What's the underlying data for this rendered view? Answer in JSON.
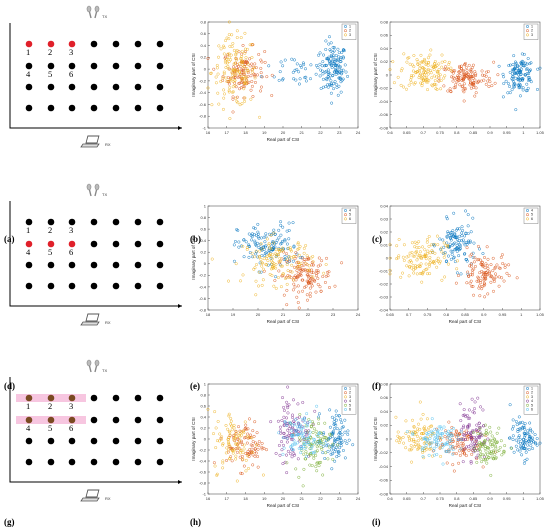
{
  "panel_labels": [
    "(a)",
    "(b)",
    "(c)",
    "(d)",
    "(e)",
    "(f)",
    "(g)",
    "(h)",
    "(i)"
  ],
  "device_labels": {
    "tx": "TX",
    "rx": "RX"
  },
  "layout_panels": [
    {
      "label": "(a)",
      "labeled_points": [
        "1",
        "2",
        "3",
        "4",
        "5",
        "6"
      ],
      "highlighted": [
        "1",
        "2",
        "3"
      ],
      "highlight_color": "#e0202a",
      "bands": []
    },
    {
      "label": "(d)",
      "labeled_points": [
        "1",
        "2",
        "3",
        "4",
        "5",
        "6"
      ],
      "highlighted": [
        "4",
        "5",
        "6"
      ],
      "highlight_color": "#e0202a",
      "bands": []
    },
    {
      "label": "(g)",
      "labeled_points": [
        "1",
        "2",
        "3",
        "4",
        "5",
        "6"
      ],
      "highlighted": [
        "1",
        "2",
        "3",
        "4",
        "5",
        "6"
      ],
      "highlight_color": "#7a4a22",
      "bands": [
        "row1",
        "row2"
      ]
    }
  ],
  "colors": {
    "s1": "#0072bd",
    "s2": "#d95319",
    "s3": "#edb120",
    "s4": "#7e2f8e",
    "s5": "#77ac30",
    "s6": "#4dbeee",
    "grid_dot": "#000000",
    "band": "#f7c6e0"
  },
  "chart_data": [
    {
      "panel": "(b)",
      "type": "scatter",
      "xlabel": "Real part of CSI",
      "ylabel": "Imaginary part of CSI",
      "xlim": [
        16,
        24
      ],
      "ylim": [
        -1,
        0.8
      ],
      "xticks": [
        "16",
        "17",
        "18",
        "19",
        "20",
        "21",
        "22",
        "23",
        "24"
      ],
      "yticks": [
        "0.8",
        "0.6",
        "0.4",
        "0.2",
        "0",
        "-0.2",
        "-0.4",
        "-0.6",
        "-0.8",
        "-1"
      ],
      "legend": [
        "1",
        "2",
        "3"
      ],
      "legend_position": "top-right",
      "series": [
        {
          "name": "1",
          "color": "#0072bd",
          "clusters": [
            {
              "cx": 22.7,
              "cy": 0.0,
              "sx": 0.35,
              "sy": 0.22,
              "n": 130
            },
            {
              "cx": 20.8,
              "cy": 0.0,
              "sx": 0.9,
              "sy": 0.15,
              "n": 35
            }
          ]
        },
        {
          "name": "2",
          "color": "#d95319",
          "clusters": [
            {
              "cx": 17.9,
              "cy": -0.05,
              "sx": 0.55,
              "sy": 0.2,
              "n": 120
            }
          ]
        },
        {
          "name": "3",
          "color": "#edb120",
          "clusters": [
            {
              "cx": 17.4,
              "cy": -0.05,
              "sx": 0.6,
              "sy": 0.3,
              "n": 140
            }
          ]
        }
      ]
    },
    {
      "panel": "(c)",
      "type": "scatter",
      "xlabel": "",
      "ylabel": "Imaginary part of CSI",
      "xlim": [
        0.6,
        1.05
      ],
      "ylim": [
        -0.08,
        0.08
      ],
      "xticks": [
        "0.6",
        "0.65",
        "0.7",
        "0.75",
        "0.8",
        "0.85",
        "0.9",
        "0.95",
        "1",
        "1.05"
      ],
      "yticks": [
        "0.08",
        "0.06",
        "0.04",
        "0.02",
        "0",
        "-0.02",
        "-0.04",
        "-0.06",
        "-0.08"
      ],
      "legend": [
        "1",
        "2",
        "3"
      ],
      "legend_position": "top-right",
      "series": [
        {
          "name": "1",
          "color": "#0072bd",
          "clusters": [
            {
              "cx": 0.99,
              "cy": 0.0,
              "sx": 0.022,
              "sy": 0.013,
              "n": 120
            }
          ]
        },
        {
          "name": "2",
          "color": "#d95319",
          "clusters": [
            {
              "cx": 0.83,
              "cy": -0.005,
              "sx": 0.04,
              "sy": 0.012,
              "n": 130
            }
          ]
        },
        {
          "name": "3",
          "color": "#edb120",
          "clusters": [
            {
              "cx": 0.7,
              "cy": 0.005,
              "sx": 0.035,
              "sy": 0.014,
              "n": 130
            }
          ]
        }
      ]
    },
    {
      "panel": "(e)",
      "type": "scatter",
      "xlabel": "Real part of CSI",
      "ylabel": "Imaginary part of CSI",
      "xlim": [
        18,
        24
      ],
      "ylim": [
        -0.8,
        1
      ],
      "xticks": [
        "18",
        "19",
        "20",
        "21",
        "22",
        "23",
        "24"
      ],
      "yticks": [
        "1",
        "0.8",
        "0.6",
        "0.4",
        "0.2",
        "0",
        "-0.2",
        "-0.4",
        "-0.6",
        "-0.8"
      ],
      "legend": [
        "4",
        "5",
        "6"
      ],
      "legend_position": "top-right",
      "series": [
        {
          "name": "4",
          "color": "#0072bd",
          "clusters": [
            {
              "cx": 20.4,
              "cy": 0.3,
              "sx": 0.6,
              "sy": 0.2,
              "n": 130
            }
          ]
        },
        {
          "name": "5",
          "color": "#d95319",
          "clusters": [
            {
              "cx": 21.9,
              "cy": -0.2,
              "sx": 0.55,
              "sy": 0.18,
              "n": 130
            }
          ]
        },
        {
          "name": "6",
          "color": "#edb120",
          "clusters": [
            {
              "cx": 20.8,
              "cy": 0.05,
              "sx": 0.7,
              "sy": 0.2,
              "n": 130
            }
          ]
        }
      ]
    },
    {
      "panel": "(f)",
      "type": "scatter",
      "xlabel": "Real part of CSI",
      "ylabel": "",
      "xlim": [
        0.65,
        1.05
      ],
      "ylim": [
        -0.04,
        0.04
      ],
      "xticks": [
        "0.65",
        "0.7",
        "0.75",
        "0.8",
        "0.85",
        "0.9",
        "0.95",
        "1",
        "1.05"
      ],
      "yticks": [
        "0.04",
        "0.03",
        "0.02",
        "0.01",
        "0",
        "-0.01",
        "-0.02",
        "-0.03",
        "-0.04"
      ],
      "legend": [
        "4",
        "5",
        "6"
      ],
      "legend_position": "top-right",
      "series": [
        {
          "name": "4",
          "color": "#0072bd",
          "clusters": [
            {
              "cx": 0.83,
              "cy": 0.01,
              "sx": 0.025,
              "sy": 0.009,
              "n": 110
            }
          ]
        },
        {
          "name": "5",
          "color": "#d95319",
          "clusters": [
            {
              "cx": 0.9,
              "cy": -0.012,
              "sx": 0.03,
              "sy": 0.008,
              "n": 110
            }
          ]
        },
        {
          "name": "6",
          "color": "#edb120",
          "clusters": [
            {
              "cx": 0.73,
              "cy": 0.0,
              "sx": 0.035,
              "sy": 0.008,
              "n": 120
            }
          ]
        }
      ]
    },
    {
      "panel": "(h)",
      "type": "scatter",
      "xlabel": "Real part of CSI",
      "ylabel": "Imaginary part of CSI",
      "xlim": [
        16,
        24
      ],
      "ylim": [
        -1,
        1
      ],
      "xticks": [
        "16",
        "17",
        "18",
        "19",
        "20",
        "21",
        "22",
        "23",
        "24"
      ],
      "yticks": [
        "1",
        "0.8",
        "0.6",
        "0.4",
        "0.2",
        "0",
        "-0.2",
        "-0.4",
        "-0.6",
        "-0.8",
        "-1"
      ],
      "legend": [
        "1",
        "2",
        "3",
        "4",
        "5",
        "6"
      ],
      "legend_position": "top-right",
      "series": [
        {
          "name": "1",
          "color": "#0072bd",
          "clusters": [
            {
              "cx": 22.8,
              "cy": 0.0,
              "sx": 0.35,
              "sy": 0.25,
              "n": 90
            }
          ]
        },
        {
          "name": "2",
          "color": "#d95319",
          "clusters": [
            {
              "cx": 18.0,
              "cy": -0.1,
              "sx": 0.5,
              "sy": 0.22,
              "n": 90
            }
          ]
        },
        {
          "name": "3",
          "color": "#edb120",
          "clusters": [
            {
              "cx": 17.4,
              "cy": -0.05,
              "sx": 0.55,
              "sy": 0.28,
              "n": 90
            }
          ]
        },
        {
          "name": "4",
          "color": "#7e2f8e",
          "clusters": [
            {
              "cx": 20.5,
              "cy": 0.2,
              "sx": 0.5,
              "sy": 0.3,
              "n": 100
            }
          ]
        },
        {
          "name": "5",
          "color": "#77ac30",
          "clusters": [
            {
              "cx": 21.6,
              "cy": -0.1,
              "sx": 0.5,
              "sy": 0.25,
              "n": 90
            }
          ]
        },
        {
          "name": "6",
          "color": "#4dbeee",
          "clusters": [
            {
              "cx": 21.0,
              "cy": 0.05,
              "sx": 0.5,
              "sy": 0.2,
              "n": 90
            }
          ]
        }
      ]
    },
    {
      "panel": "(i)",
      "type": "scatter",
      "xlabel": "Real part of CSI",
      "ylabel": "Imaginary part of CSI",
      "xlim": [
        0.6,
        1.05
      ],
      "ylim": [
        -0.08,
        0.08
      ],
      "xticks": [
        "0.6",
        "0.65",
        "0.7",
        "0.75",
        "0.8",
        "0.85",
        "0.9",
        "0.95",
        "1",
        "1.05"
      ],
      "yticks": [
        "0.08",
        "0.06",
        "0.04",
        "0.02",
        "0",
        "-0.02",
        "-0.04",
        "-0.06",
        "-0.08"
      ],
      "legend": [
        "1",
        "2",
        "3",
        "4",
        "5",
        "6"
      ],
      "legend_position": "top-right",
      "series": [
        {
          "name": "1",
          "color": "#0072bd",
          "clusters": [
            {
              "cx": 1.0,
              "cy": 0.0,
              "sx": 0.02,
              "sy": 0.014,
              "n": 90
            }
          ]
        },
        {
          "name": "2",
          "color": "#d95319",
          "clusters": [
            {
              "cx": 0.8,
              "cy": -0.005,
              "sx": 0.035,
              "sy": 0.014,
              "n": 90
            }
          ]
        },
        {
          "name": "3",
          "color": "#edb120",
          "clusters": [
            {
              "cx": 0.68,
              "cy": 0.0,
              "sx": 0.03,
              "sy": 0.015,
              "n": 90
            }
          ]
        },
        {
          "name": "4",
          "color": "#7e2f8e",
          "clusters": [
            {
              "cx": 0.85,
              "cy": 0.01,
              "sx": 0.02,
              "sy": 0.022,
              "n": 90
            }
          ]
        },
        {
          "name": "5",
          "color": "#77ac30",
          "clusters": [
            {
              "cx": 0.9,
              "cy": -0.01,
              "sx": 0.025,
              "sy": 0.014,
              "n": 90
            }
          ]
        },
        {
          "name": "6",
          "color": "#4dbeee",
          "clusters": [
            {
              "cx": 0.74,
              "cy": 0.0,
              "sx": 0.03,
              "sy": 0.012,
              "n": 90
            }
          ]
        }
      ]
    }
  ]
}
